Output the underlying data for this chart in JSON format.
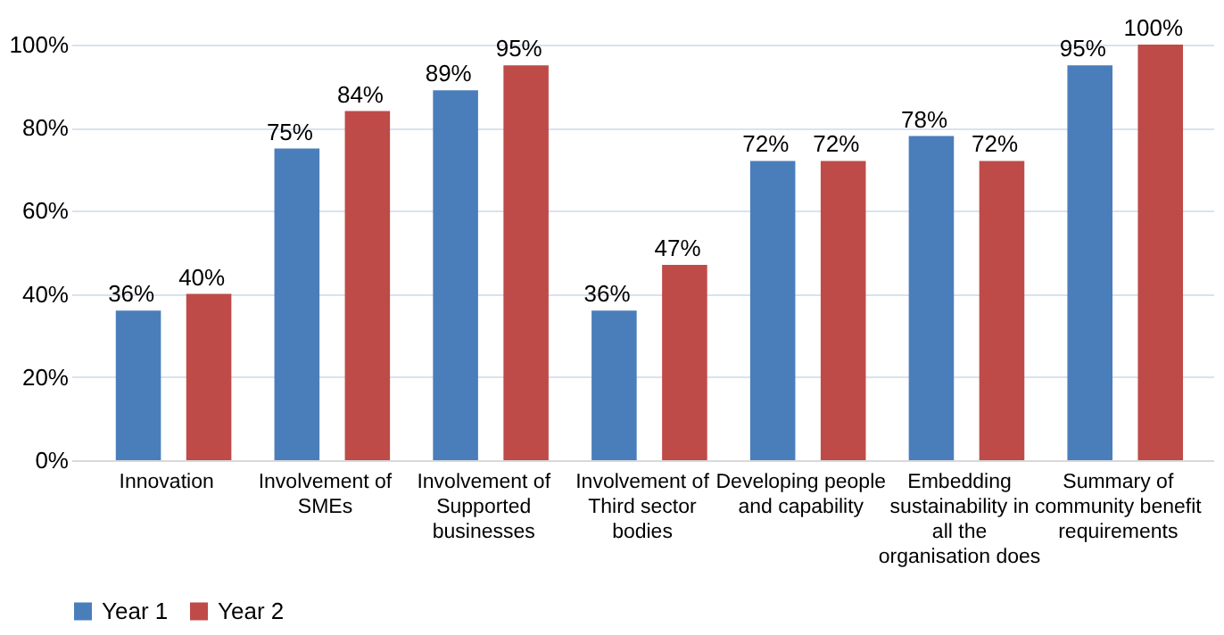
{
  "chart_data": {
    "type": "bar",
    "categories": [
      "Innovation",
      "Involvement of SMEs",
      "Involvement of Supported businesses",
      "Involvement of Third sector bodies",
      "Developing people and capability",
      "Embedding sustainability in all the organisation does",
      "Summary of community benefit requirements"
    ],
    "series": [
      {
        "name": "Year 1",
        "color": "#4a7ebb",
        "values": [
          36,
          75,
          89,
          36,
          72,
          78,
          95
        ],
        "value_labels": [
          "36%",
          "75%",
          "89%",
          "36%",
          "72%",
          "78%",
          "95%"
        ]
      },
      {
        "name": "Year 2",
        "color": "#be4b48",
        "values": [
          40,
          84,
          95,
          47,
          72,
          72,
          100
        ],
        "value_labels": [
          "40%",
          "84%",
          "95%",
          "47%",
          "72%",
          "72%",
          "100%"
        ]
      }
    ],
    "ylim": [
      0,
      100
    ],
    "yticks": [
      {
        "value": 0,
        "label": "0%"
      },
      {
        "value": 20,
        "label": "20%"
      },
      {
        "value": 40,
        "label": "40%"
      },
      {
        "value": 60,
        "label": "60%"
      },
      {
        "value": 80,
        "label": "80%"
      },
      {
        "value": 100,
        "label": "100%"
      }
    ],
    "grid": "y",
    "legend": "bottom"
  }
}
